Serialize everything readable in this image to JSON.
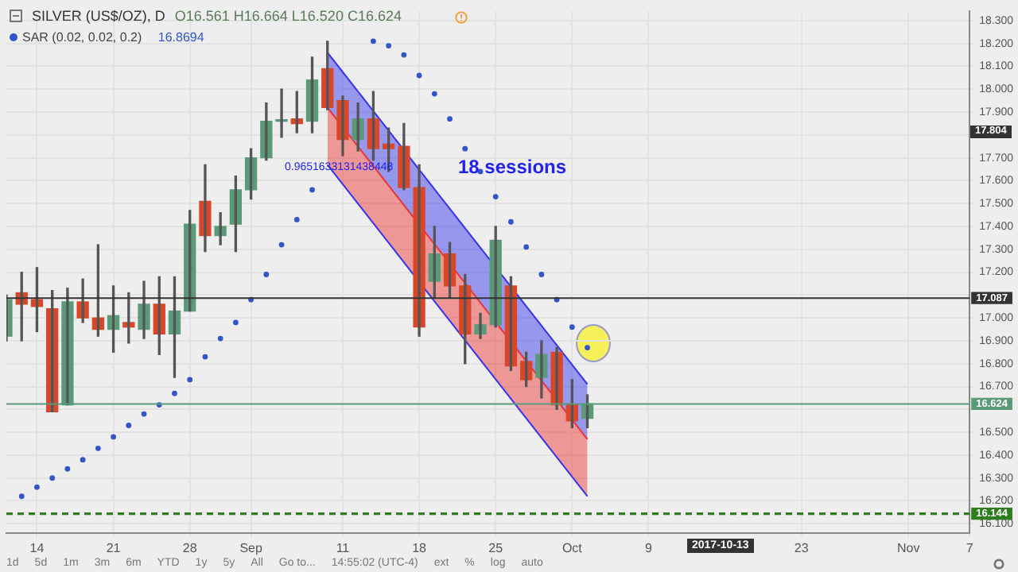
{
  "chart_data": {
    "type": "candlestick",
    "title": "SILVER (US$/OZ), D",
    "subtitle": "O16.561 H16.664 L16.520 C16.624",
    "categories": [
      null,
      null,
      "14",
      null,
      null,
      null,
      null,
      "21",
      null,
      null,
      null,
      null,
      "28",
      null,
      null,
      null,
      "Sep",
      null,
      null,
      null,
      null,
      null,
      "11",
      null,
      null,
      null,
      null,
      "18",
      null,
      null,
      null,
      null,
      "25",
      null,
      null,
      null,
      null,
      "Oct",
      null,
      null,
      null,
      null,
      "9",
      null,
      null,
      null,
      null,
      null,
      null,
      null,
      null,
      null,
      "23",
      null,
      null,
      null,
      null,
      null,
      null,
      "Nov",
      null,
      null,
      null,
      "7"
    ],
    "ohlc": [
      [
        16.92,
        17.1,
        16.9,
        17.08
      ],
      [
        17.11,
        17.2,
        16.9,
        17.06
      ],
      [
        17.08,
        17.22,
        16.94,
        17.05
      ],
      [
        17.04,
        17.12,
        16.59,
        16.59
      ],
      [
        16.62,
        17.13,
        16.62,
        17.07
      ],
      [
        17.07,
        17.17,
        16.98,
        17.0
      ],
      [
        17.0,
        17.32,
        16.92,
        16.95
      ],
      [
        16.95,
        17.14,
        16.85,
        17.01
      ],
      [
        16.98,
        17.11,
        16.89,
        16.96
      ],
      [
        16.95,
        17.16,
        16.91,
        17.06
      ],
      [
        17.06,
        17.18,
        16.84,
        16.93
      ],
      [
        16.93,
        17.18,
        16.74,
        17.03
      ],
      [
        17.03,
        17.47,
        17.03,
        17.41
      ],
      [
        17.51,
        17.67,
        17.29,
        17.36
      ],
      [
        17.36,
        17.46,
        17.32,
        17.4
      ],
      [
        17.41,
        17.62,
        17.29,
        17.56
      ],
      [
        17.56,
        17.74,
        17.52,
        17.7
      ],
      [
        17.7,
        17.94,
        17.69,
        17.86
      ],
      [
        17.86,
        18.0,
        17.79,
        17.86
      ],
      [
        17.87,
        17.99,
        17.81,
        17.85
      ],
      [
        17.86,
        18.14,
        17.81,
        18.04
      ],
      [
        18.09,
        18.21,
        17.91,
        17.92
      ],
      [
        17.95,
        17.97,
        17.71,
        17.78
      ],
      [
        17.78,
        17.94,
        17.73,
        17.87
      ],
      [
        17.87,
        17.99,
        17.69,
        17.74
      ],
      [
        17.76,
        17.83,
        17.64,
        17.74
      ],
      [
        17.75,
        17.85,
        17.56,
        17.57
      ],
      [
        17.57,
        17.67,
        16.92,
        16.96
      ],
      [
        17.16,
        17.4,
        17.09,
        17.28
      ],
      [
        17.28,
        17.33,
        17.09,
        17.14
      ],
      [
        17.14,
        17.19,
        16.8,
        16.93
      ],
      [
        16.93,
        17.02,
        16.91,
        16.97
      ],
      [
        16.97,
        17.4,
        16.96,
        17.34
      ],
      [
        17.14,
        17.18,
        16.77,
        16.79
      ],
      [
        16.81,
        16.85,
        16.7,
        16.73
      ],
      [
        16.74,
        16.9,
        16.65,
        16.84
      ],
      [
        16.85,
        16.87,
        16.6,
        16.62
      ],
      [
        16.62,
        16.73,
        16.52,
        16.55
      ],
      [
        16.561,
        16.664,
        16.52,
        16.624
      ],
      null,
      null,
      null,
      null,
      null,
      null,
      null,
      null,
      null,
      null,
      null,
      null,
      null,
      null,
      null,
      null,
      null,
      null,
      null,
      null,
      null,
      null,
      null,
      null,
      null
    ],
    "series": [
      {
        "name": "SAR (0.02, 0.02, 0.2)",
        "type": "scatter",
        "color": "#3355cc",
        "marker": "circle",
        "values": [
          null,
          16.22,
          16.26,
          16.3,
          16.34,
          16.38,
          16.43,
          16.48,
          16.53,
          16.58,
          16.62,
          16.67,
          16.73,
          16.83,
          16.91,
          16.98,
          17.08,
          17.19,
          17.32,
          17.43,
          17.56,
          null,
          null,
          null,
          18.21,
          18.19,
          18.15,
          18.06,
          17.98,
          17.87,
          17.74,
          17.64,
          17.53,
          17.42,
          17.31,
          17.19,
          17.08,
          16.96,
          16.87,
          null,
          null,
          null,
          null,
          null,
          null,
          null,
          null,
          null,
          null,
          null,
          null,
          null,
          null,
          null,
          null,
          null,
          null,
          null,
          null,
          null,
          null,
          null,
          null,
          null
        ]
      },
      {
        "type": "line",
        "color": "#3333ee",
        "values": [
          null,
          null,
          null,
          null,
          null,
          null,
          null,
          null,
          null,
          null,
          null,
          null,
          null,
          null,
          null,
          null,
          null,
          null,
          null,
          null,
          null,
          18.16,
          null,
          null,
          null,
          null,
          null,
          null,
          null,
          null,
          null,
          null,
          null,
          null,
          null,
          null,
          null,
          null,
          16.71,
          null,
          null,
          null,
          null,
          null,
          null,
          null,
          null,
          null,
          null,
          null,
          null,
          null,
          null,
          null,
          null,
          null,
          null,
          null,
          null,
          null,
          null,
          null,
          null,
          null
        ],
        "upper": [
          null,
          null,
          null,
          null,
          null,
          null,
          null,
          null,
          null,
          null,
          null,
          null,
          null,
          null,
          null,
          null,
          null,
          null,
          null,
          null,
          null,
          18.16,
          null,
          null,
          null,
          null,
          null,
          null,
          null,
          null,
          null,
          null,
          null,
          null,
          null,
          null,
          null,
          null,
          16.71,
          null,
          null,
          null,
          null,
          null,
          null,
          null,
          null,
          null,
          null,
          null,
          null,
          null,
          null,
          null,
          null,
          null,
          null,
          null,
          null,
          null,
          null,
          null,
          null,
          null
        ],
        "lower": [
          null,
          null,
          null,
          null,
          null,
          null,
          null,
          null,
          null,
          null,
          null,
          null,
          null,
          null,
          null,
          null,
          null,
          null,
          null,
          null,
          null,
          17.92,
          null,
          null,
          null,
          null,
          null,
          null,
          null,
          null,
          null,
          null,
          null,
          null,
          null,
          null,
          null,
          null,
          16.47,
          null,
          null,
          null,
          null,
          null,
          null,
          null,
          null,
          null,
          null,
          null,
          null,
          null,
          null,
          null,
          null,
          null,
          null,
          null,
          null,
          null,
          null,
          null,
          null,
          null
        ]
      },
      {
        "type": "line",
        "color": "#ee3333",
        "values": [
          null,
          null,
          null,
          null,
          null,
          null,
          null,
          null,
          null,
          null,
          null,
          null,
          null,
          null,
          null,
          null,
          null,
          null,
          null,
          null,
          null,
          17.92,
          null,
          null,
          null,
          null,
          null,
          null,
          null,
          null,
          null,
          null,
          null,
          null,
          null,
          null,
          null,
          null,
          16.47,
          null,
          null,
          null,
          null,
          null,
          null,
          null,
          null,
          null,
          null,
          null,
          null,
          null,
          null,
          null,
          null,
          null,
          null,
          null,
          null,
          null,
          null,
          null,
          null,
          null
        ],
        "upper": [
          null,
          null,
          null,
          null,
          null,
          null,
          null,
          null,
          null,
          null,
          null,
          null,
          null,
          null,
          null,
          null,
          null,
          null,
          null,
          null,
          null,
          17.92,
          null,
          null,
          null,
          null,
          null,
          null,
          null,
          null,
          null,
          null,
          null,
          null,
          null,
          null,
          null,
          null,
          16.47,
          null,
          null,
          null,
          null,
          null,
          null,
          null,
          null,
          null,
          null,
          null,
          null,
          null,
          null,
          null,
          null,
          null,
          null,
          null,
          null,
          null,
          null,
          null,
          null,
          null
        ],
        "lower": [
          null,
          null,
          null,
          null,
          null,
          null,
          null,
          null,
          null,
          null,
          null,
          null,
          null,
          null,
          null,
          null,
          null,
          null,
          null,
          null,
          null,
          17.67,
          null,
          null,
          null,
          null,
          null,
          null,
          null,
          null,
          null,
          null,
          null,
          null,
          null,
          null,
          null,
          null,
          16.22,
          null,
          null,
          null,
          null,
          null,
          null,
          null,
          null,
          null,
          null,
          null,
          null,
          null,
          null,
          null,
          null,
          null,
          null,
          null,
          null,
          null,
          null,
          null,
          null,
          null
        ]
      },
      {
        "type": "line",
        "color": "#3333ee",
        "values": [
          null,
          null,
          null,
          null,
          null,
          null,
          null,
          null,
          null,
          null,
          null,
          null,
          null,
          null,
          null,
          null,
          null,
          null,
          null,
          null,
          null,
          17.67,
          null,
          null,
          null,
          null,
          null,
          null,
          null,
          null,
          null,
          null,
          null,
          null,
          null,
          null,
          null,
          null,
          16.22,
          null,
          null,
          null,
          null,
          null,
          null,
          null,
          null,
          null,
          null,
          null,
          null,
          null,
          null,
          null,
          null,
          null,
          null,
          null,
          null,
          null,
          null,
          null,
          null,
          null
        ]
      }
    ],
    "ylim": [
      16.06,
      18.34
    ],
    "yticks": [
      {
        "value": 16.1,
        "label": "16.100"
      },
      {
        "value": 16.2,
        "label": "16.200"
      },
      {
        "value": 16.3,
        "label": "16.300"
      },
      {
        "value": 16.4,
        "label": "16.400"
      },
      {
        "value": 16.5,
        "label": "16.500"
      },
      {
        "value": 16.6,
        "label": null
      },
      {
        "value": 16.7,
        "label": "16.700"
      },
      {
        "value": 16.8,
        "label": "16.800"
      },
      {
        "value": 16.9,
        "label": "16.900"
      },
      {
        "value": 17.0,
        "label": "17.000"
      },
      {
        "value": 17.1,
        "label": null
      },
      {
        "value": 17.2,
        "label": "17.200"
      },
      {
        "value": 17.3,
        "label": "17.300"
      },
      {
        "value": 17.4,
        "label": "17.400"
      },
      {
        "value": 17.5,
        "label": "17.500"
      },
      {
        "value": 17.6,
        "label": "17.600"
      },
      {
        "value": 17.7,
        "label": "17.700"
      },
      {
        "value": 17.8,
        "label": null
      },
      {
        "value": 17.9,
        "label": "17.900"
      },
      {
        "value": 18.0,
        "label": "18.000"
      },
      {
        "value": 18.1,
        "label": "18.100"
      },
      {
        "value": 18.2,
        "label": "18.200"
      },
      {
        "value": 18.3,
        "label": "18.300"
      }
    ],
    "ref_lines": [
      {
        "axis": "y",
        "value": 17.087,
        "label": "17.087",
        "color": "#333333"
      },
      {
        "axis": "y",
        "value": 16.624,
        "label": "16.624",
        "color": "#5b9a78"
      },
      {
        "axis": "y",
        "value": 16.144,
        "label": "16.144",
        "color": "#2e7d1e",
        "line_style": "dashed"
      }
    ],
    "annotations": [
      "18 sessions",
      "0.9651633131438448",
      "2017-10-13",
      "16.8694",
      "17.804",
      "1d",
      "5d",
      "1m",
      "3m",
      "6m",
      "YTD",
      "1y",
      "5y",
      "All",
      "Go to...",
      "14:55:02 (UTC-4)",
      "ext",
      "%",
      "log",
      "auto"
    ],
    "grid": true,
    "legend": "top left"
  }
}
